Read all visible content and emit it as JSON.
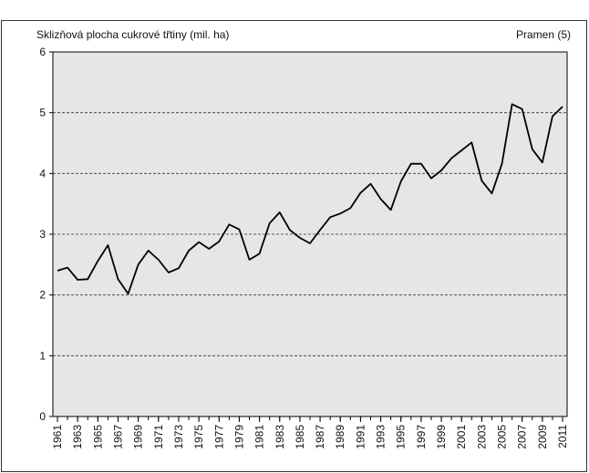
{
  "chart_data": {
    "type": "line",
    "title": "Sklizňová plocha cukrové třtiny (mil. ha)",
    "source": "Pramen (5)",
    "x": [
      1961,
      1962,
      1963,
      1964,
      1965,
      1966,
      1967,
      1968,
      1969,
      1970,
      1971,
      1972,
      1973,
      1974,
      1975,
      1976,
      1977,
      1978,
      1979,
      1980,
      1981,
      1982,
      1983,
      1984,
      1985,
      1986,
      1987,
      1988,
      1989,
      1990,
      1991,
      1992,
      1993,
      1994,
      1995,
      1996,
      1997,
      1998,
      1999,
      2000,
      2001,
      2002,
      2003,
      2004,
      2005,
      2006,
      2007,
      2008,
      2009,
      2010,
      2011
    ],
    "series": [
      {
        "name": "Sklizňová plocha",
        "color": "#000000",
        "values": [
          2.4,
          2.45,
          2.25,
          2.26,
          2.56,
          2.82,
          2.26,
          2.02,
          2.5,
          2.73,
          2.58,
          2.37,
          2.44,
          2.73,
          2.87,
          2.76,
          2.88,
          3.16,
          3.08,
          2.58,
          2.68,
          3.18,
          3.36,
          3.07,
          2.94,
          2.85,
          3.07,
          3.28,
          3.34,
          3.43,
          3.68,
          3.83,
          3.58,
          3.4,
          3.87,
          4.16,
          4.16,
          3.92,
          4.05,
          4.25,
          4.38,
          4.51,
          3.88,
          3.67,
          4.16,
          5.14,
          5.06,
          4.4,
          4.18,
          4.94,
          5.1
        ]
      }
    ],
    "xlim": [
      1960.55,
      2011.45
    ],
    "xticks": [
      1961,
      1963,
      1965,
      1967,
      1969,
      1971,
      1973,
      1975,
      1977,
      1979,
      1981,
      1983,
      1985,
      1987,
      1989,
      1991,
      1993,
      1995,
      1997,
      1999,
      2001,
      2003,
      2005,
      2007,
      2009,
      2011
    ],
    "ylim": [
      0,
      6
    ],
    "yticks": [
      0,
      1,
      2,
      3,
      4,
      5,
      6
    ],
    "grid": true
  }
}
